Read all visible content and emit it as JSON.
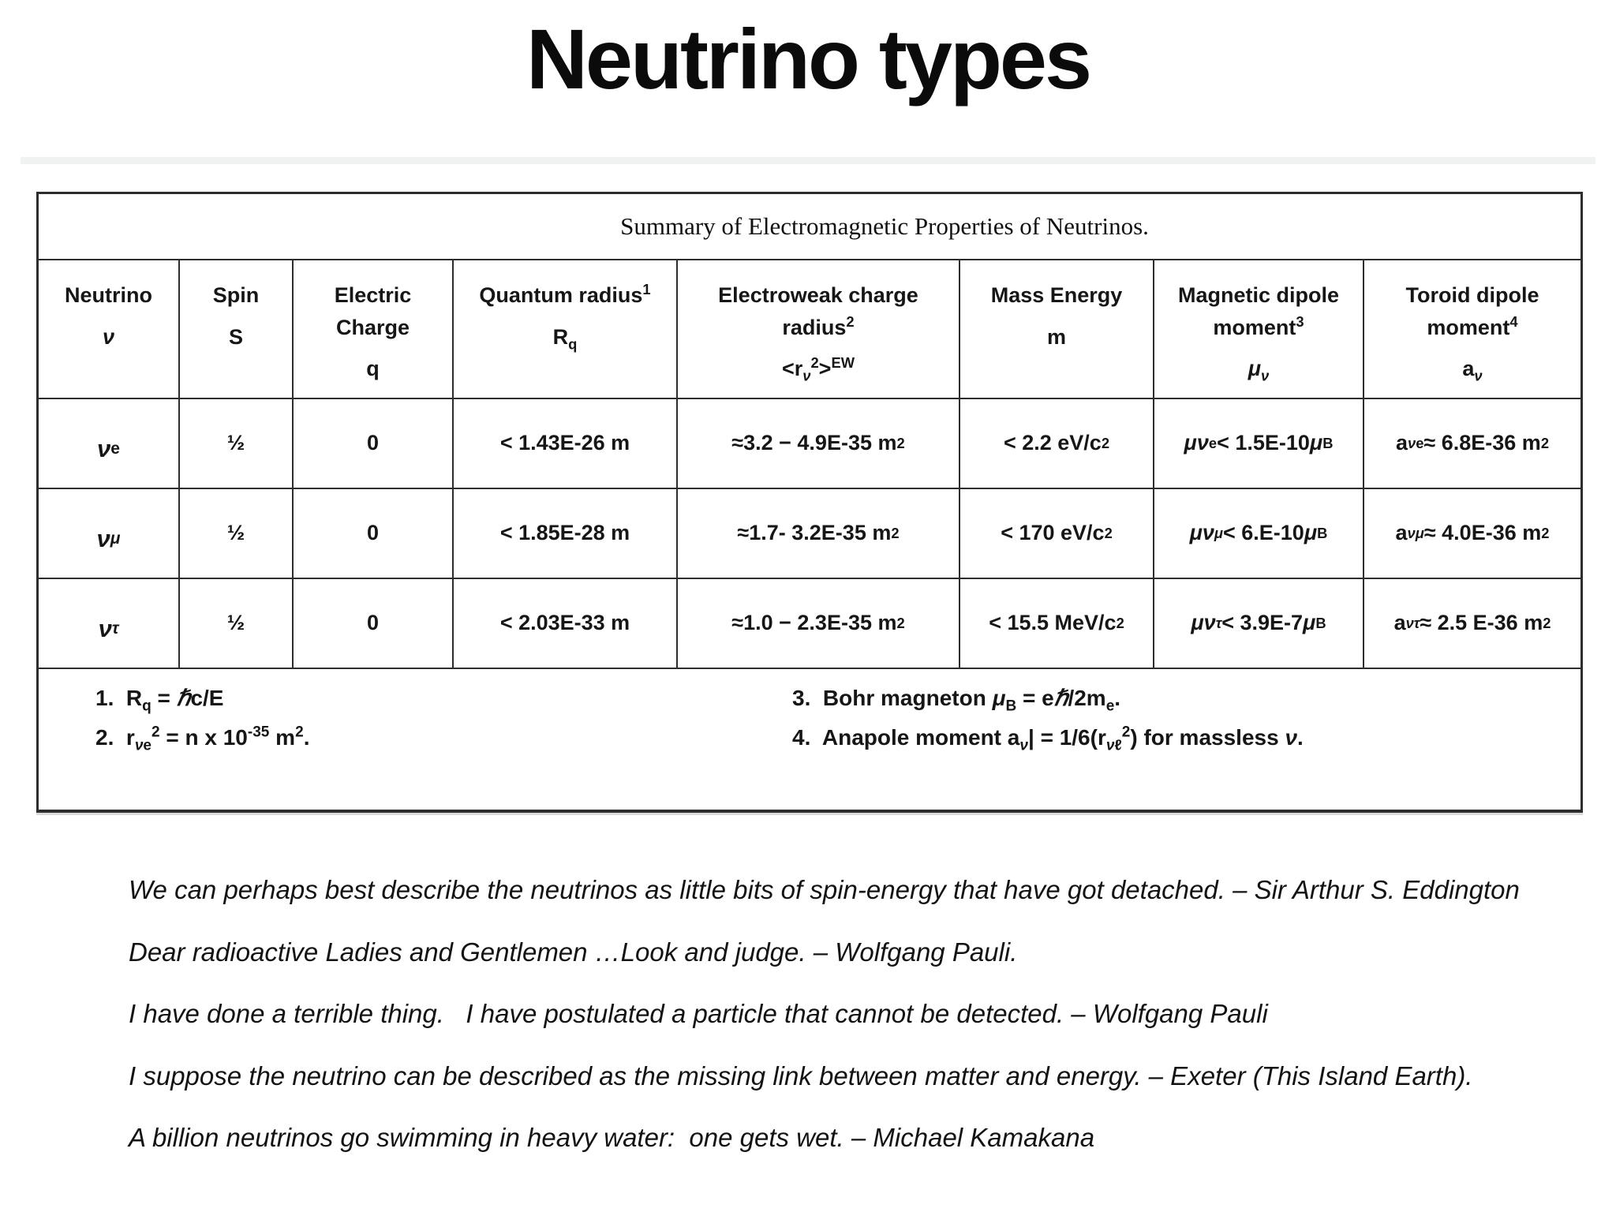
{
  "title": "Neutrino types",
  "table": {
    "caption": "Summary of Electromagnetic Properties of Neutrinos.",
    "headers": [
      {
        "label": "Neutrino",
        "symbol": "<i>ν</i>"
      },
      {
        "label": "Spin",
        "symbol": "S"
      },
      {
        "label": "Electric<br>Charge",
        "symbol": "q"
      },
      {
        "label": "Quantum radius<sup>1</sup>",
        "symbol": "R<sub>q</sub>"
      },
      {
        "label": "Electroweak charge<br>radius<sup>2</sup>",
        "symbol": "&lt;r<sub><i>ν</i></sub><sup>2</sup>&gt;<sup>EW</sup>"
      },
      {
        "label": "Mass Energy",
        "symbol": "m"
      },
      {
        "label": "Magnetic dipole<br>moment<sup>3</sup>",
        "symbol": "<i>μ<sub>ν</sub></i>"
      },
      {
        "label": "Toroid dipole<br>moment<sup>4</sup>",
        "symbol": "a<sub><i>ν</i></sub>"
      }
    ],
    "rows": [
      {
        "cells": [
          "<i>ν</i><sub>e</sub>",
          "½",
          "0",
          "&lt; 1.43E-26 m",
          "≈3.2 − 4.9E-35 m<sup>2</sup>",
          "&lt; 2.2 eV/c<sup>2</sup>",
          "<i>μν</i><sub>e</sub>&lt; 1.5E-10 <i>μ</i><sub>B</sub>",
          "a<sub><i>ν</i>e</sub> ≈ 6.8E-36 m<sup>2</sup>"
        ]
      },
      {
        "cells": [
          "<i>ν</i><sub><i>μ</i></sub>",
          "½",
          "0",
          "&lt; 1.85E-28 m",
          "≈1.7- 3.2E-35 m<sup>2</sup>",
          "&lt; 170 eV/c<sup>2</sup>",
          "<i>μν</i><sub><i>μ</i></sub> &lt; 6.E-10 <i>μ</i><sub>B</sub>",
          "a<sub><i>νμ</i></sub> ≈ 4.0E-36 m<sup>2</sup>"
        ]
      },
      {
        "cells": [
          "<i>ν</i><sub><i>τ</i></sub>",
          "½",
          "0",
          "&lt; 2.03E-33 m",
          "≈1.0 − 2.3E-35 m<sup>2</sup>",
          "&lt; 15.5 MeV/c<sup>2</sup>",
          "<i>μν</i><sub><i>τ</i></sub> &lt; 3.9E-7 <i>μ</i><sub>B</sub>",
          "a<sub><i>ντ</i></sub> ≈ 2.5 E-36 m<sup>2</sup>"
        ]
      }
    ],
    "footnotes_left": [
      "1.&nbsp; R<sub>q</sub> = <i>ℏ</i>c/E",
      "2.&nbsp; r<sub><i>ν</i>e</sub><sup>2</sup> = n x 10<sup>-35</sup> m<sup>2</sup>."
    ],
    "footnotes_right": [
      "3.&nbsp; Bohr magneton <i>μ</i><sub>B</sub> = e<i>ℏ</i>/2m<sub>e</sub>.",
      "4.&nbsp; Anapole moment a<sub><i>ν</i></sub>| = 1/6(r<sub><i>ν</i>ℓ</sub><sup>2</sup>) for massless <i>ν</i>."
    ]
  },
  "quotes": [
    "We can perhaps best describe the neutrinos as little bits of spin-energy that have got detached. – Sir Arthur S. Eddington",
    "Dear radioactive Ladies and Gentlemen …Look and judge. – Wolfgang Pauli.",
    "I have done a terrible thing.   I have postulated a particle that cannot be detected. – Wolfgang Pauli",
    "I suppose the neutrino can be described as the missing link between matter and energy. – Exeter (This Island Earth).",
    "A billion neutrinos go swimming in heavy water:  one gets wet. – Michael Kamakana"
  ],
  "colors": {
    "table_border": "#2d2d2d",
    "text": "#161616",
    "faint_rule": "#f0f2f2",
    "background": "#ffffff"
  }
}
